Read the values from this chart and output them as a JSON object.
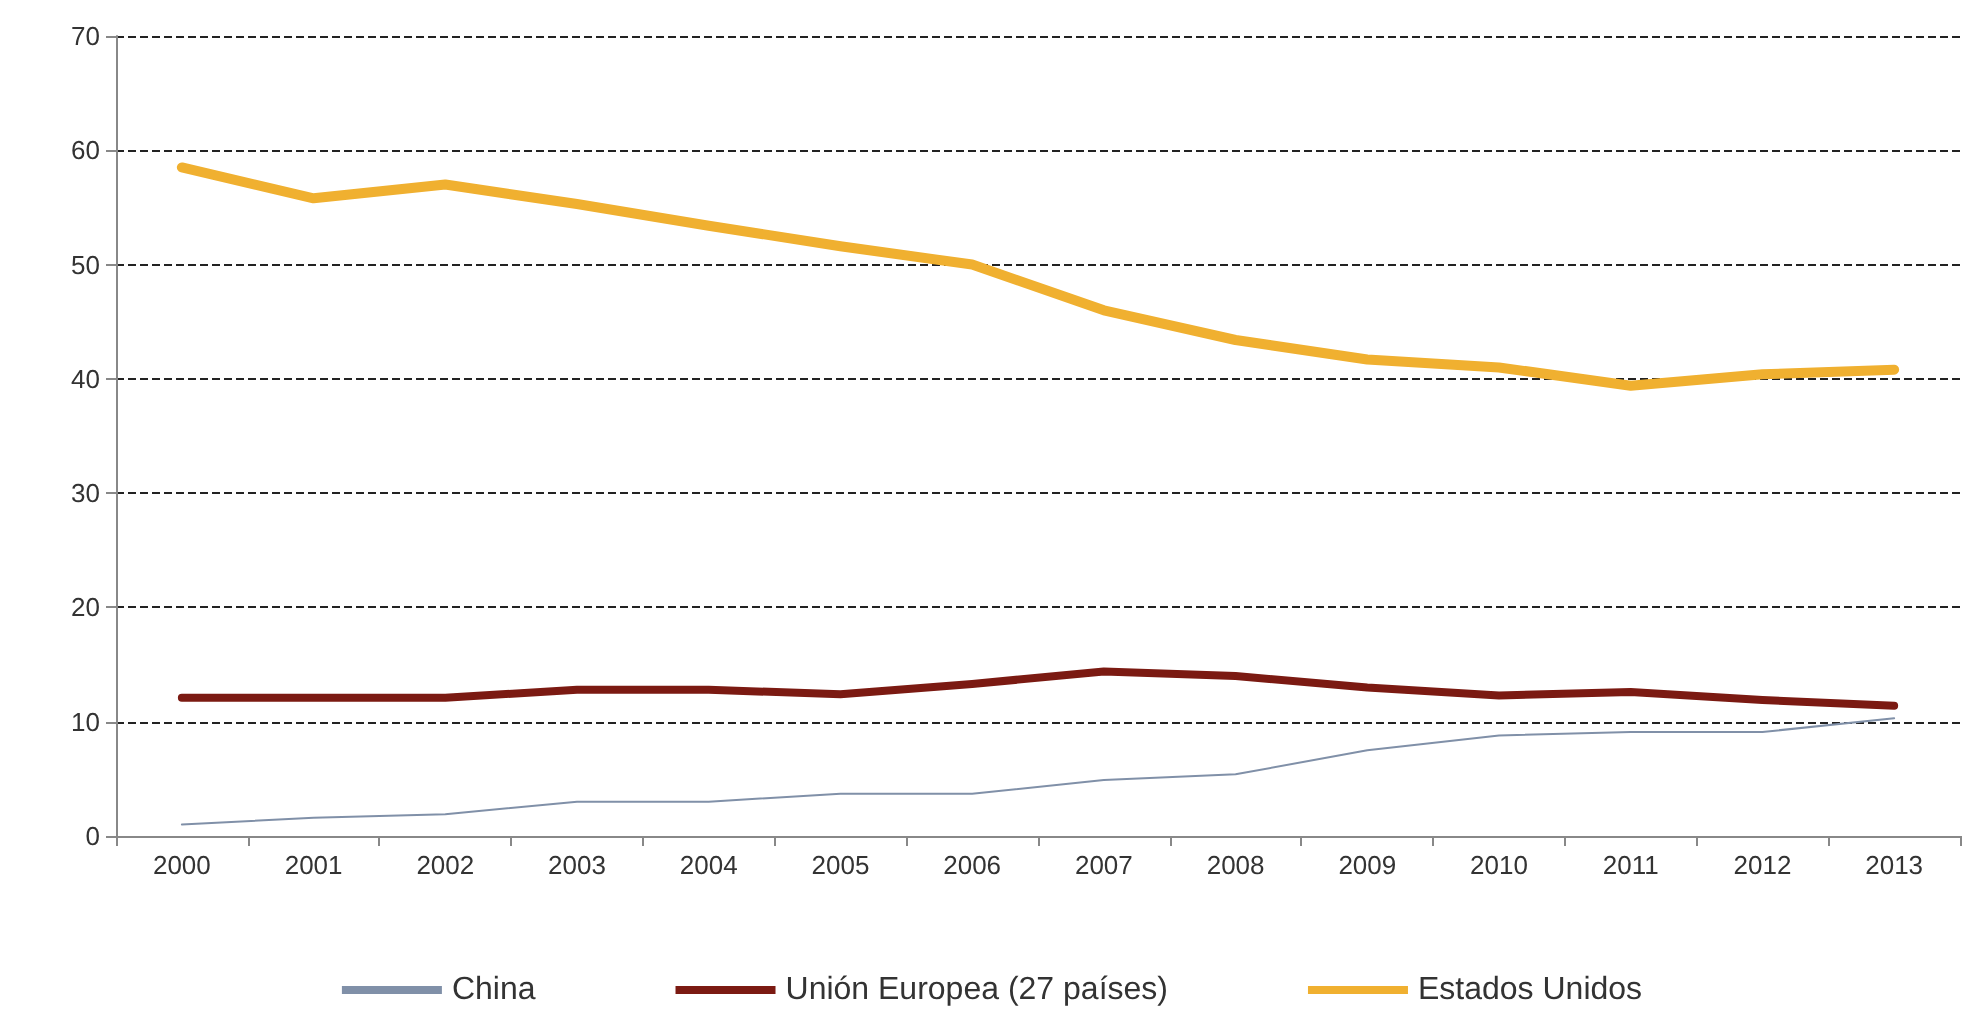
{
  "chart_data": {
    "type": "line",
    "categories": [
      "2000",
      "2001",
      "2002",
      "2003",
      "2004",
      "2005",
      "2006",
      "2007",
      "2008",
      "2009",
      "2010",
      "2011",
      "2012",
      "2013"
    ],
    "series": [
      {
        "name": "China",
        "color": "#8090a8",
        "values": [
          1.0,
          1.6,
          1.9,
          3.0,
          3.0,
          3.7,
          3.7,
          4.9,
          5.4,
          7.5,
          8.8,
          9.1,
          9.1,
          10.3
        ]
      },
      {
        "name": "Unión Europea (27 países)",
        "color": "#7b1a12",
        "values": [
          12.1,
          12.1,
          12.1,
          12.8,
          12.8,
          12.4,
          13.3,
          14.4,
          14.0,
          13.0,
          12.3,
          12.6,
          11.9,
          11.4
        ]
      },
      {
        "name": "Estados Unidos",
        "color": "#f0b030",
        "values": [
          58.5,
          55.8,
          57.0,
          55.3,
          53.4,
          51.6,
          50.0,
          46.0,
          43.4,
          41.7,
          41.0,
          39.4,
          40.4,
          40.8
        ]
      }
    ],
    "ylim": [
      0,
      70
    ],
    "yticks": [
      0,
      10,
      20,
      30,
      40,
      50,
      60,
      70
    ],
    "grid": "y",
    "legend": "bottom",
    "marker": "none",
    "line_style": "solid"
  }
}
